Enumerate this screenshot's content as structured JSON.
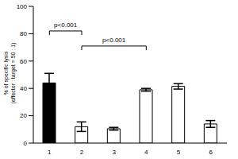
{
  "chart_data": {
    "type": "bar",
    "categories": [
      "1",
      "2",
      "3",
      "4",
      "5",
      "6"
    ],
    "values": [
      44,
      12,
      10.5,
      39,
      41.5,
      14
    ],
    "errors": [
      7,
      3.5,
      1,
      1,
      2,
      2.5
    ],
    "colors": [
      "#000000",
      "#ffffff",
      "#ffffff",
      "#ffffff",
      "#ffffff",
      "#ffffff"
    ],
    "y_label": "% of specific lysis (effector : target = 50 : 1)",
    "ylim": [
      0,
      100
    ],
    "yticks": [
      0,
      20,
      40,
      60,
      80,
      100
    ],
    "grid": false,
    "annotations": [
      {
        "text": "p<0.001",
        "from": "1",
        "to": "2"
      },
      {
        "text": "p<0.001",
        "from": "2",
        "to": "4"
      }
    ]
  }
}
